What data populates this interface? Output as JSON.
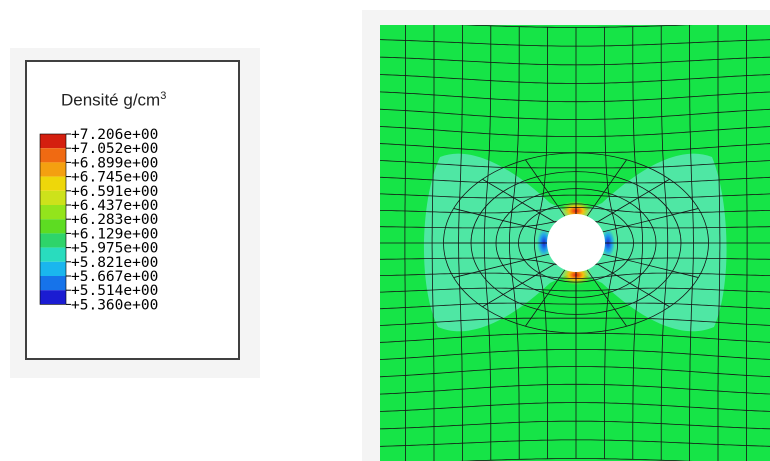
{
  "legend": {
    "title": "Densité g/cm",
    "title_superscript": "3",
    "tick_values": [
      "+7.206e+00",
      "+7.052e+00",
      "+6.899e+00",
      "+6.745e+00",
      "+6.591e+00",
      "+6.437e+00",
      "+6.283e+00",
      "+6.129e+00",
      "+5.975e+00",
      "+5.821e+00",
      "+5.667e+00",
      "+5.514e+00",
      "+5.360e+00"
    ],
    "band_colors": [
      "#d41f0f",
      "#f06a12",
      "#f4a010",
      "#eed70a",
      "#cde21b",
      "#93e41c",
      "#5ddc22",
      "#2ed46a",
      "#29dcbe",
      "#1ab6ee",
      "#1673ea",
      "#1b1cd2"
    ]
  },
  "contour_colors": {
    "background": "#16e447",
    "relative_density_low_zone": "#4fe7a4",
    "hole": "#ffffff",
    "high_density_stops": [
      "#ee1c10",
      "#f7c00e",
      "#bfe314"
    ],
    "low_density_stops": [
      "#1a2bd8",
      "#1f9fea"
    ],
    "mesh_lines": "#141414"
  }
}
